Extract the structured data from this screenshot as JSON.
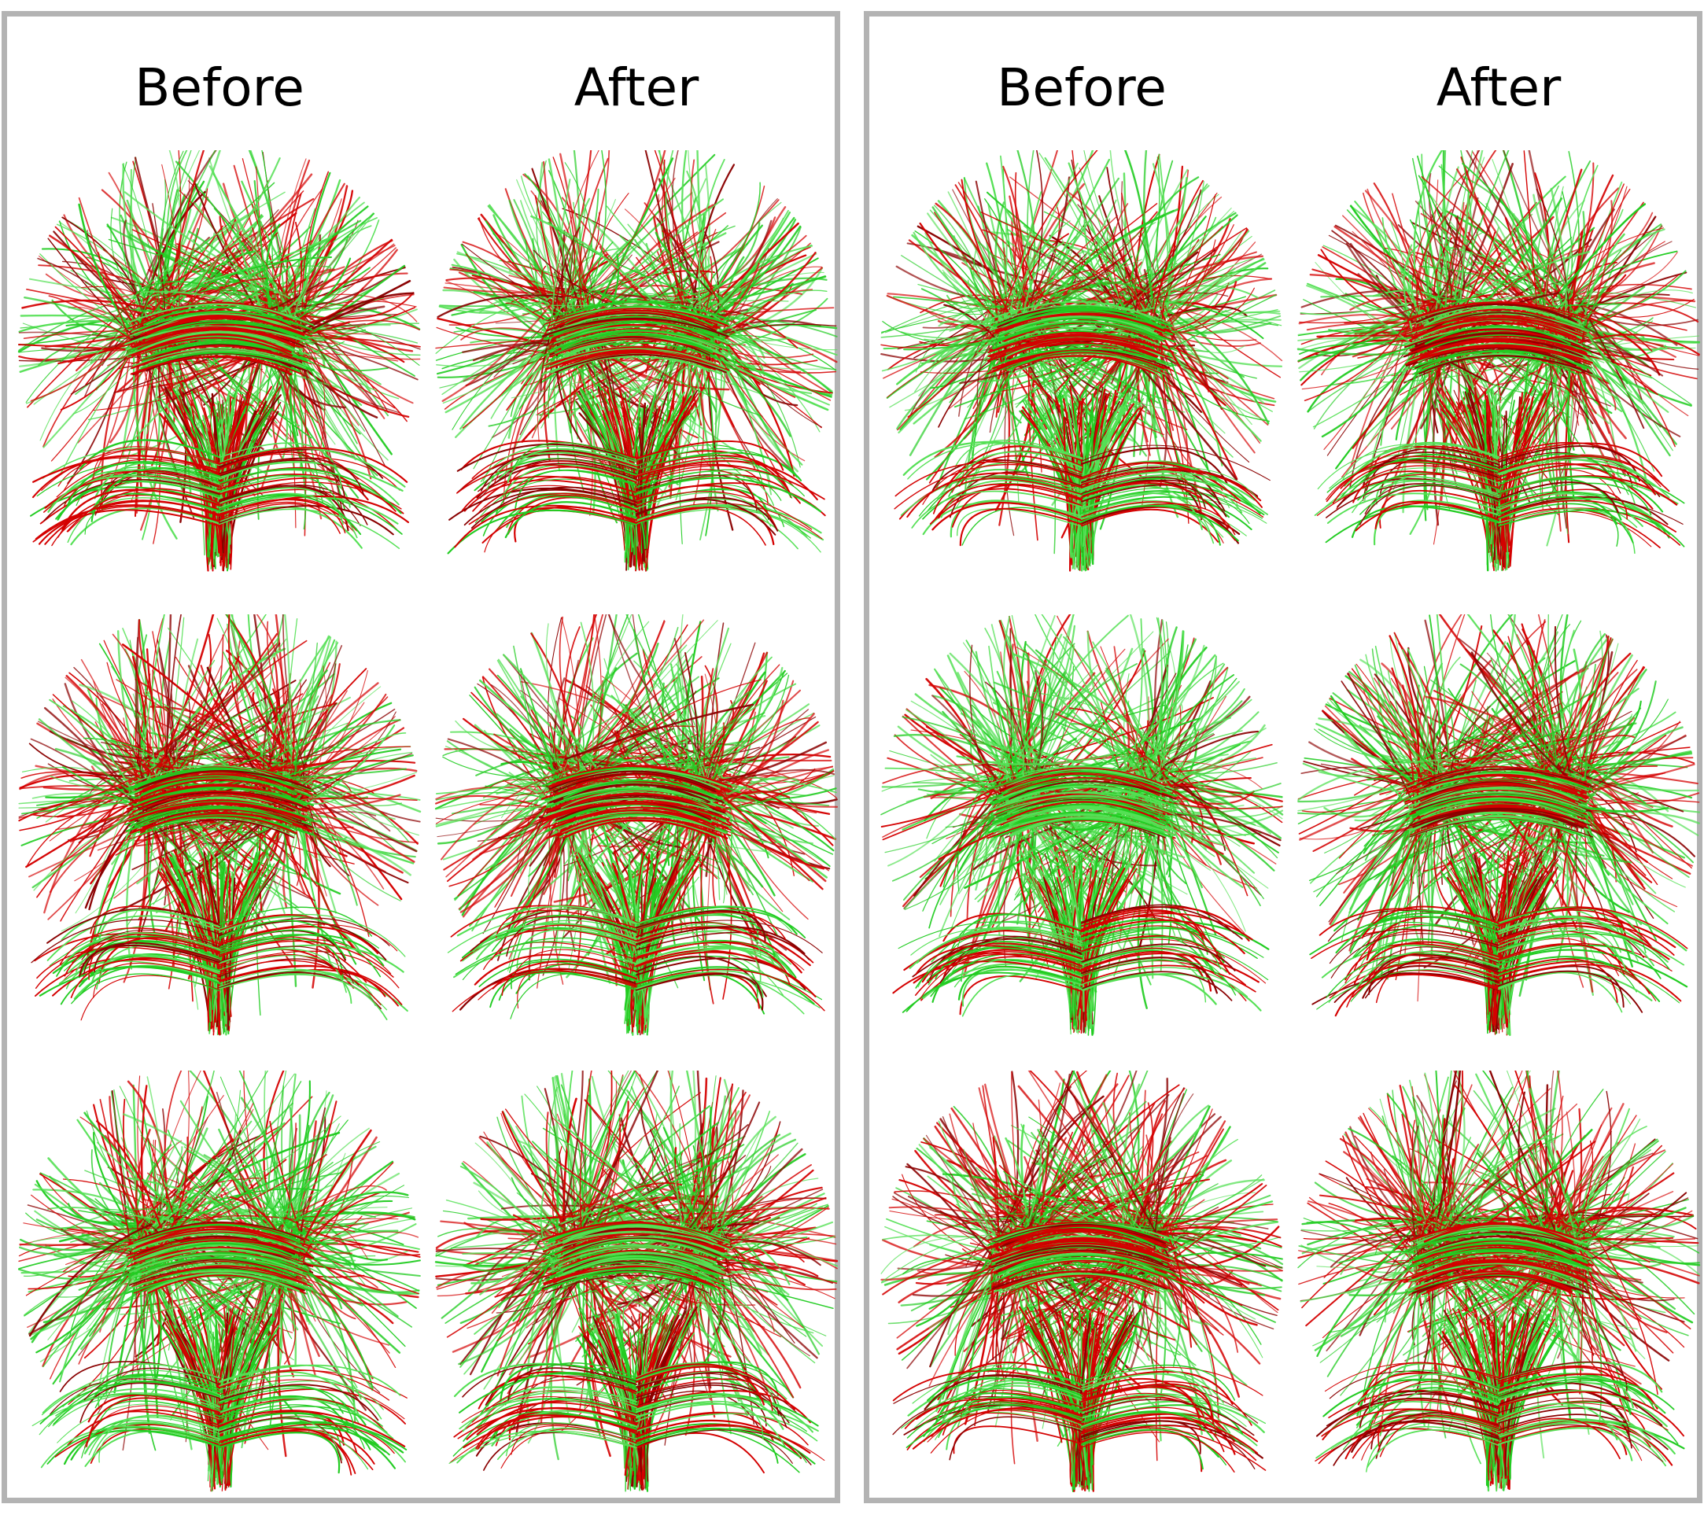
{
  "colors": {
    "border": "#b3b3b3",
    "fiber_red": "#d40000",
    "fiber_dark_red": "#8a0000",
    "fiber_green": "#22cc22",
    "fiber_light_green": "#55e055",
    "background": "#ffffff"
  },
  "panels": [
    {
      "headers": {
        "before": "Before",
        "after": "After"
      },
      "rows": 3
    },
    {
      "headers": {
        "before": "Before",
        "after": "After"
      },
      "rows": 3
    }
  ],
  "icons": {
    "tractogram": "brain-tractography-icon"
  }
}
